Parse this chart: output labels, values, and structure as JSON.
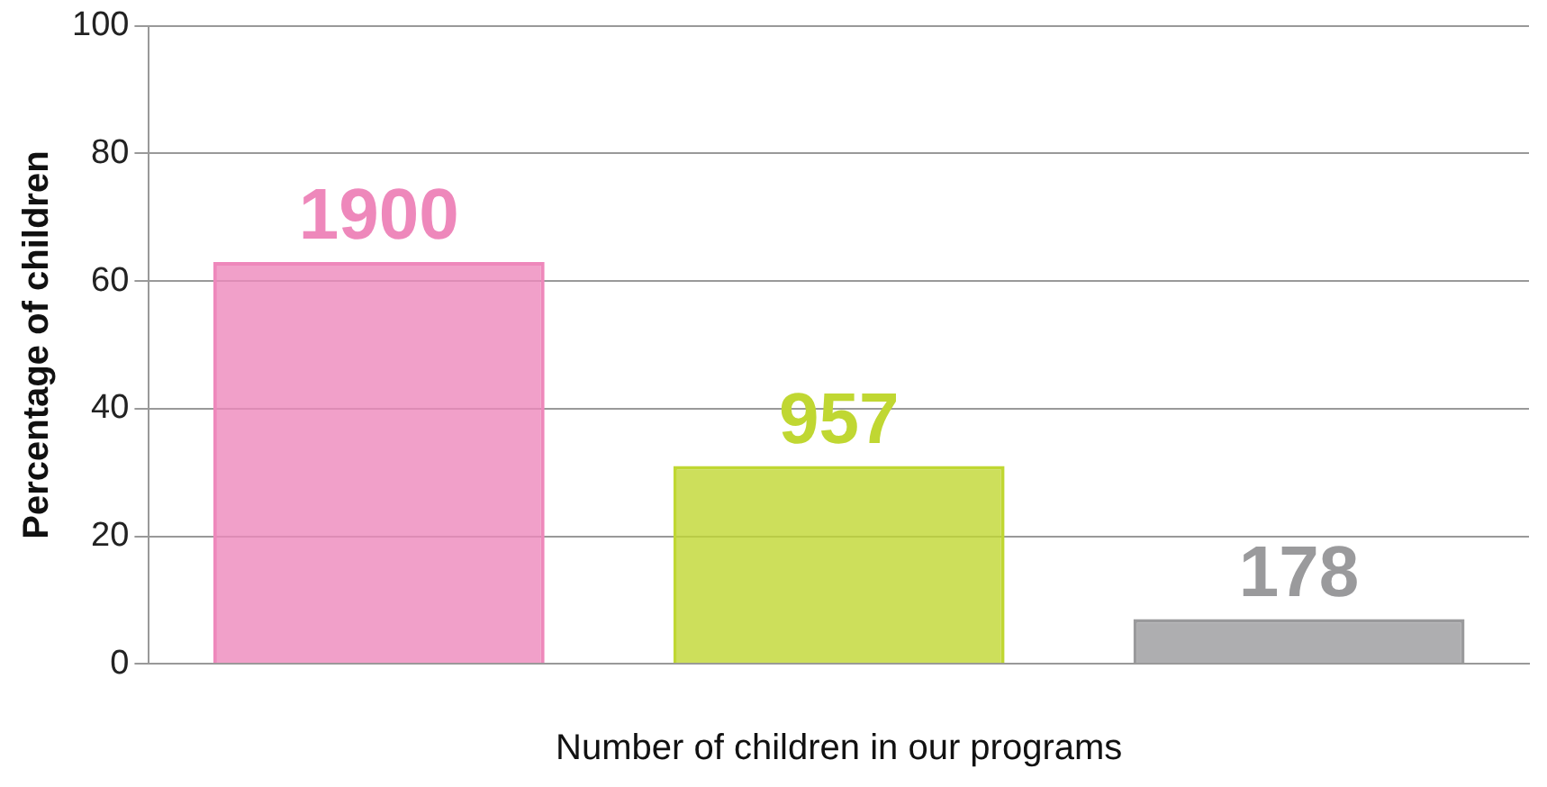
{
  "chart_data": {
    "type": "bar",
    "xlabel": "Number of children in our programs",
    "ylabel": "Percentage of children",
    "categories": [
      null,
      null,
      null
    ],
    "values": [
      63,
      31,
      7
    ],
    "colors": [
      "#ee88bb",
      "#c0d732",
      "#9a9a9c"
    ],
    "annotations": [
      {
        "text": "1900",
        "y": 63
      },
      {
        "text": "957",
        "y": 31
      },
      {
        "text": "178",
        "y": 7
      }
    ],
    "ylim": [
      0,
      100
    ],
    "yticks": [
      0,
      20,
      40,
      60,
      80,
      100
    ],
    "grid": "y",
    "legend": false
  }
}
